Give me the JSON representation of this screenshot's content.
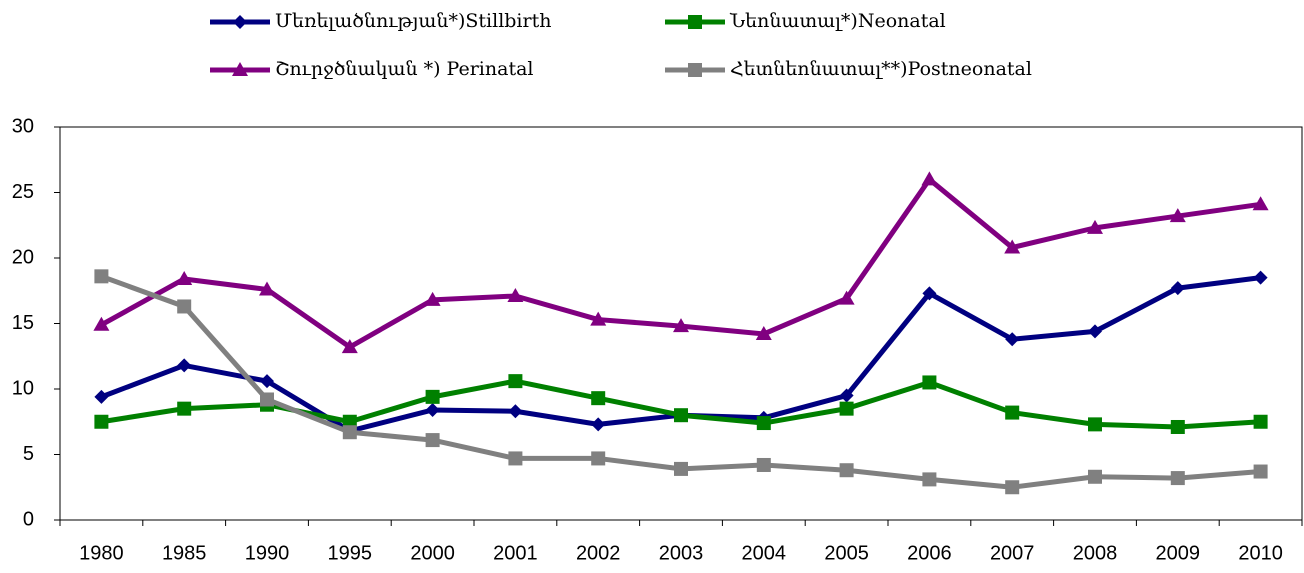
{
  "chart_data": {
    "type": "line",
    "categories": [
      "1980",
      "1985",
      "1990",
      "1995",
      "2000",
      "2001",
      "2002",
      "2003",
      "2004",
      "2005",
      "2006",
      "2007",
      "2008",
      "2009",
      "2010"
    ],
    "series": [
      {
        "name": "Մեռելածնության*)Stillbirth",
        "color": "#000080",
        "marker": "diamond",
        "values": [
          9.4,
          11.8,
          10.6,
          6.8,
          8.4,
          8.3,
          7.3,
          8.0,
          7.8,
          9.5,
          17.3,
          13.8,
          14.4,
          17.7,
          18.5
        ]
      },
      {
        "name": "Նեոնատալ*)Neonatal",
        "color": "#008000",
        "marker": "square",
        "values": [
          7.5,
          8.5,
          8.8,
          7.5,
          9.4,
          10.6,
          9.3,
          8.0,
          7.4,
          8.5,
          10.5,
          8.2,
          7.3,
          7.1,
          7.5
        ]
      },
      {
        "name": "Շուրջծնական *) Perinatal",
        "color": "#800080",
        "marker": "triangle",
        "values": [
          14.9,
          18.4,
          17.6,
          13.2,
          16.8,
          17.1,
          15.3,
          14.8,
          14.2,
          16.9,
          26.0,
          20.8,
          22.3,
          23.2,
          24.1
        ]
      },
      {
        "name": "Հետնեոնատալ**)Postneonatal",
        "color": "#808080",
        "marker": "square",
        "values": [
          18.6,
          16.3,
          9.2,
          6.7,
          6.1,
          4.7,
          4.7,
          3.9,
          4.2,
          3.8,
          3.1,
          2.5,
          3.3,
          3.2,
          3.7
        ]
      }
    ],
    "ylim": [
      0,
      30
    ],
    "yticks": [
      0,
      5,
      10,
      15,
      20,
      25,
      30
    ]
  }
}
